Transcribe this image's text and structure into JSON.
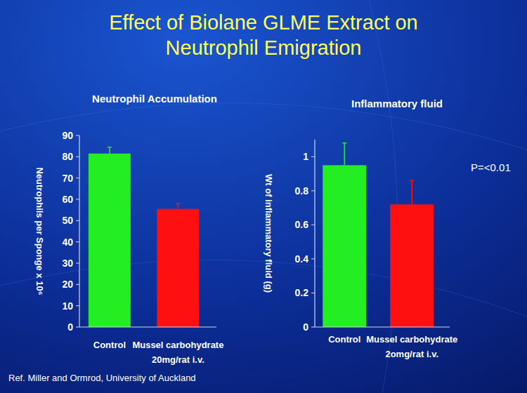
{
  "title": "Effect of Biolane GLME Extract on\nNeutrophil Emigration",
  "footnote": "Ref. Miller and Ormrod, University of Auckland",
  "chart_data": [
    {
      "type": "bar",
      "title": "Neutrophil Accumulation",
      "y_label": "Neutrophils per Sponge x 10⁶",
      "categories": [
        "Control",
        "Mussel carbohydrate\n20mg/rat i.v."
      ],
      "values": [
        81.5,
        55.5
      ],
      "errors": [
        3,
        2.5
      ],
      "colors": [
        "#22ee22",
        "#ff1010"
      ],
      "ylim": [
        0,
        90
      ],
      "yticks": [
        0,
        10,
        20,
        30,
        40,
        50,
        60,
        70,
        80,
        90
      ],
      "grid": false
    },
    {
      "type": "bar",
      "title": "Inflammatory fluid",
      "y_label": "Wt of inflammatory fluid (g)",
      "categories": [
        "Control",
        "Mussel carbohydrate\n2omg/rat i.v."
      ],
      "values": [
        0.95,
        0.72
      ],
      "errors": [
        0.13,
        0.14
      ],
      "colors": [
        "#22ee22",
        "#ff1010"
      ],
      "ylim": [
        0,
        1.1
      ],
      "yticks": [
        0,
        0.2,
        0.4,
        0.6,
        0.8,
        1
      ],
      "annotations": [
        "P=<0.01"
      ],
      "grid": false
    }
  ]
}
